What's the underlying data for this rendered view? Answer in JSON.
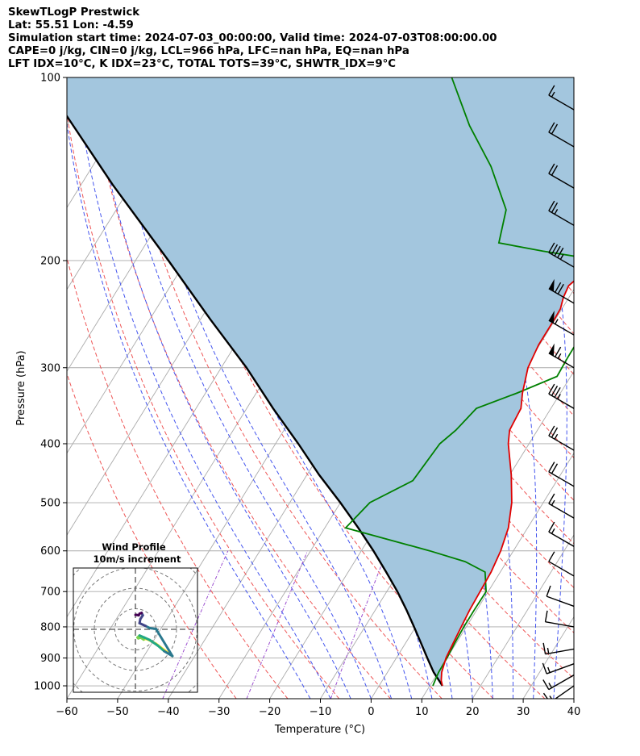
{
  "header": {
    "lines": [
      "SkewTLogP Prestwick",
      "Lat: 55.51   Lon: -4.59",
      "Simulation start time: 2024-07-03_00:00:00, Valid time: 2024-07-03T08:00:00.00",
      "CAPE=0 j/kg, CIN=0 j/kg, LCL=966 hPa, LFC=nan hPa, EQ=nan hPa",
      "LFT IDX=10°C, K IDX=23°C, TOTAL TOTS=39°C, SHWTR_IDX=9°C"
    ]
  },
  "chart_data": [
    {
      "type": "line",
      "subtype": "skew-t log-p",
      "xlabel": "Temperature (°C)",
      "ylabel": "Pressure (hPa)",
      "xlim": [
        -60,
        40
      ],
      "ylim": [
        1050,
        100
      ],
      "y_scale": "log",
      "grid": true,
      "x_ticks": [
        "−60",
        "−50",
        "−40",
        "−30",
        "−20",
        "−10",
        "0",
        "10",
        "20",
        "30",
        "40"
      ],
      "y_ticks": [
        "100",
        "200",
        "300",
        "400",
        "500",
        "600",
        "700",
        "800",
        "900",
        "1000"
      ],
      "colors": {
        "temperature": "#e00000",
        "dewpoint": "#008000",
        "parcel": "#000000",
        "cape_fill": "#a3c6de",
        "dry_adiabats": "#ee5555",
        "moist_adiabats": "#4455ee",
        "mixing_ratio": "#9a4ccf",
        "isotherms": "#aaaaaa"
      },
      "series": [
        {
          "key": "temperature",
          "points": [
            [
              1000,
              12.5
            ],
            [
              980,
              11.6
            ],
            [
              950,
              10.7
            ],
            [
              900,
              9.8
            ],
            [
              850,
              9.4
            ],
            [
              800,
              9.0
            ],
            [
              750,
              8.6
            ],
            [
              700,
              8.4
            ],
            [
              650,
              8.2
            ],
            [
              600,
              7.5
            ],
            [
              550,
              6.2
            ],
            [
              500,
              3.8
            ],
            [
              450,
              0.3
            ],
            [
              400,
              -4.1
            ],
            [
              380,
              -5.5
            ],
            [
              350,
              -5.9
            ],
            [
              330,
              -7.5
            ],
            [
              300,
              -9.5
            ],
            [
              275,
              -10.2
            ],
            [
              250,
              -10.2
            ],
            [
              240,
              -10.3
            ],
            [
              230,
              -11.1
            ],
            [
              220,
              -11.5
            ],
            [
              210,
              -10.2
            ],
            [
              200,
              -9.1
            ],
            [
              195,
              -8.1
            ],
            [
              185,
              -5.2
            ],
            [
              175,
              -4.1
            ],
            [
              160,
              -3.8
            ],
            [
              150,
              -4.1
            ],
            [
              140,
              -5.2
            ],
            [
              130,
              -5.5
            ],
            [
              120,
              -7.0
            ],
            [
              110,
              -8.8
            ],
            [
              100,
              -9.8
            ]
          ]
        },
        {
          "key": "dewpoint",
          "points": [
            [
              1000,
              10.6
            ],
            [
              980,
              10.4
            ],
            [
              950,
              10.1
            ],
            [
              900,
              10.0
            ],
            [
              850,
              9.7
            ],
            [
              800,
              9.5
            ],
            [
              750,
              9.5
            ],
            [
              700,
              9.6
            ],
            [
              650,
              7.0
            ],
            [
              625,
              1.8
            ],
            [
              600,
              -6.5
            ],
            [
              550,
              -25.9
            ],
            [
              500,
              -24.2
            ],
            [
              460,
              -18.4
            ],
            [
              400,
              -17.6
            ],
            [
              380,
              -16.1
            ],
            [
              350,
              -14.7
            ],
            [
              330,
              -8.5
            ],
            [
              310,
              -2.7
            ],
            [
              290,
              -2.9
            ],
            [
              260,
              -3.0
            ],
            [
              240,
              -1.3
            ],
            [
              230,
              -1.5
            ],
            [
              210,
              -2.5
            ],
            [
              202,
              -4.5
            ],
            [
              193,
              -20.8
            ],
            [
              187,
              -30.5
            ],
            [
              165,
              -33.1
            ],
            [
              140,
              -41.4
            ],
            [
              120,
              -50.6
            ],
            [
              100,
              -60.0
            ]
          ]
        },
        {
          "key": "parcel",
          "points": [
            [
              1000,
              12.5
            ],
            [
              950,
              9.1
            ],
            [
              900,
              6.1
            ],
            [
              850,
              3.0
            ],
            [
              800,
              -0.3
            ],
            [
              750,
              -3.9
            ],
            [
              700,
              -7.9
            ],
            [
              650,
              -12.5
            ],
            [
              600,
              -17.6
            ],
            [
              550,
              -23.4
            ],
            [
              500,
              -30.0
            ],
            [
              450,
              -37.6
            ],
            [
              400,
              -45.5
            ],
            [
              350,
              -54.8
            ],
            [
              300,
              -65.0
            ],
            [
              250,
              -78.0
            ],
            [
              200,
              -93.5
            ],
            [
              150,
              -113.8
            ],
            [
              100,
              -141.0
            ]
          ]
        }
      ],
      "wind_barbs": {
        "units": "knots",
        "levels": [
          {
            "p": 1000,
            "speed": 15,
            "dir": 235
          },
          {
            "p": 960,
            "speed": 15,
            "dir": 240
          },
          {
            "p": 920,
            "speed": 15,
            "dir": 250
          },
          {
            "p": 870,
            "speed": 15,
            "dir": 260
          },
          {
            "p": 800,
            "speed": 10,
            "dir": 280
          },
          {
            "p": 740,
            "speed": 10,
            "dir": 290
          },
          {
            "p": 660,
            "speed": 10,
            "dir": 300
          },
          {
            "p": 590,
            "speed": 15,
            "dir": 300
          },
          {
            "p": 530,
            "speed": 15,
            "dir": 300
          },
          {
            "p": 470,
            "speed": 20,
            "dir": 300
          },
          {
            "p": 410,
            "speed": 25,
            "dir": 300
          },
          {
            "p": 350,
            "speed": 35,
            "dir": 300
          },
          {
            "p": 300,
            "speed": 65,
            "dir": 300
          },
          {
            "p": 265,
            "speed": 55,
            "dir": 300
          },
          {
            "p": 235,
            "speed": 70,
            "dir": 300
          },
          {
            "p": 205,
            "speed": 45,
            "dir": 300
          },
          {
            "p": 175,
            "speed": 25,
            "dir": 300
          },
          {
            "p": 152,
            "speed": 20,
            "dir": 300
          },
          {
            "p": 130,
            "speed": 20,
            "dir": 300
          },
          {
            "p": 113,
            "speed": 15,
            "dir": 300
          }
        ]
      }
    },
    {
      "type": "line",
      "subtype": "hodograph",
      "title": "Wind Profile",
      "subtitle": "10m/s increment",
      "units": "m/s",
      "ring_step": 10,
      "trace": [
        [
          9.0,
          -6.5
        ],
        [
          7.0,
          -5.0
        ],
        [
          5.0,
          -3.5
        ],
        [
          3.5,
          -2.7
        ],
        [
          2.5,
          -2.3
        ],
        [
          2.0,
          -2.5
        ],
        [
          1.3,
          -2.0
        ],
        [
          0.7,
          -2.2
        ],
        [
          0.5,
          -2.0
        ],
        [
          1.0,
          -1.5
        ],
        [
          2.2,
          -2.0
        ],
        [
          3.5,
          -2.6
        ],
        [
          5.5,
          -4.0
        ],
        [
          7.0,
          -5.3
        ],
        [
          9.0,
          -6.5
        ],
        [
          5.0,
          0.1
        ],
        [
          3.5,
          0.3
        ],
        [
          2.5,
          0.8
        ],
        [
          1.0,
          1.5
        ],
        [
          1.2,
          2.5
        ],
        [
          1.8,
          3.4
        ],
        [
          1.5,
          4.0
        ],
        [
          1.0,
          3.8
        ],
        [
          0.8,
          3.4
        ],
        [
          0.3,
          3.5
        ],
        [
          0.0,
          3.5
        ]
      ],
      "colormap": [
        "#fde725",
        "#7ad151",
        "#22a884",
        "#2a788e",
        "#414487",
        "#440154"
      ]
    }
  ]
}
